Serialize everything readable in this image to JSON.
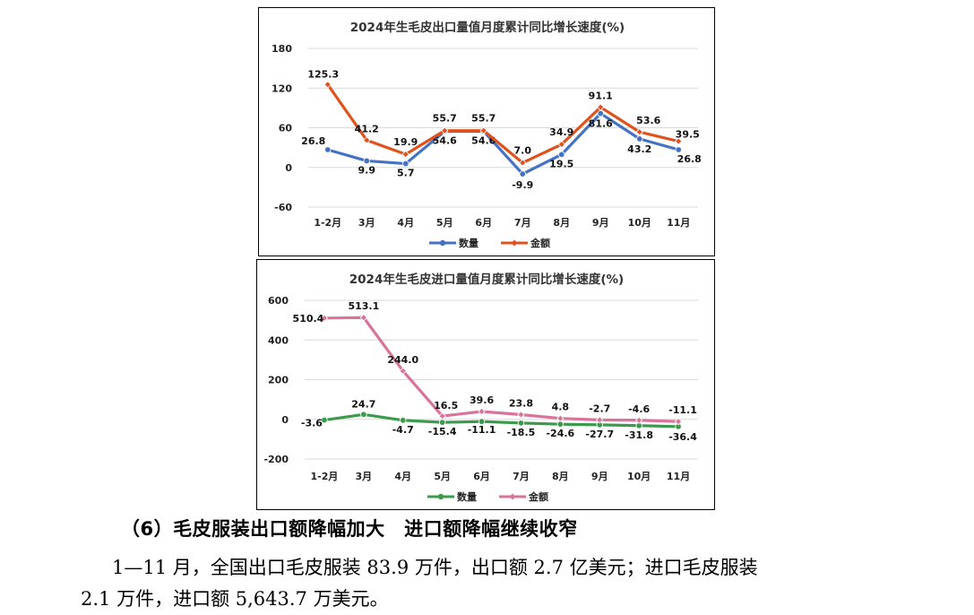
{
  "charts": [
    {
      "title": "2024年生毛皮出口量值月度累计同比增长速度(%)",
      "categories": [
        "1-2月",
        "3月",
        "4月",
        "5月",
        "6月",
        "7月",
        "8月",
        "9月",
        "10月",
        "11月"
      ],
      "ylim": [
        -60,
        180
      ],
      "yticks": [
        -60,
        0,
        60,
        120,
        180
      ],
      "series": [
        {
          "name": "数量",
          "color": "#4472C4",
          "values": [
            26.8,
            9.9,
            5.7,
            54.6,
            54.6,
            -9.9,
            19.5,
            81.6,
            43.2,
            26.8
          ]
        },
        {
          "name": "金额",
          "color": "#E0521C",
          "values": [
            125.3,
            41.2,
            19.9,
            55.7,
            55.7,
            7.0,
            34.9,
            91.1,
            53.6,
            39.5
          ]
        }
      ]
    },
    {
      "title": "2024年生毛皮进口量值月度累计同比增长速度(%)",
      "categories": [
        "1-2月",
        "3月",
        "4月",
        "5月",
        "6月",
        "7月",
        "8月",
        "9月",
        "10月",
        "11月"
      ],
      "ylim": [
        -200,
        600
      ],
      "yticks": [
        -200,
        0,
        200,
        400,
        600
      ],
      "series": [
        {
          "name": "数量",
          "color": "#3C9A4C",
          "values": [
            -3.6,
            24.7,
            -4.7,
            -15.4,
            -11.1,
            -18.5,
            -24.6,
            -27.7,
            -31.8,
            -36.4
          ]
        },
        {
          "name": "金额",
          "color": "#D9739A",
          "values": [
            510.4,
            513.1,
            244.0,
            16.5,
            39.6,
            23.8,
            4.8,
            -2.7,
            -4.6,
            -11.1
          ]
        }
      ]
    }
  ],
  "text": {
    "heading": "（6）毛皮服装出口额降幅加大　进口额降幅继续收窄",
    "para1": "1—11 月，全国出口毛皮服装 83.9 万件，出口额 2.7 亿美元；进口毛皮服装",
    "para2": "2.1 万件，进口额 5,643.7 万美元。"
  }
}
